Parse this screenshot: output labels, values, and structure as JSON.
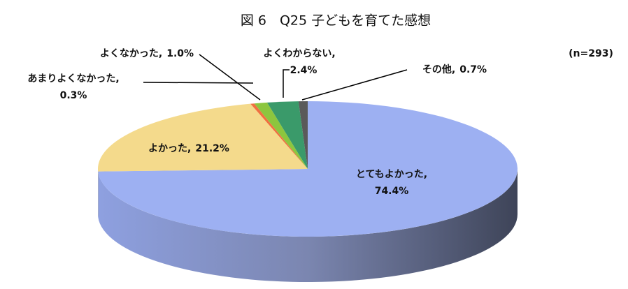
{
  "chart_data": {
    "type": "pie",
    "title": "図 6　Q25 子どもを育てた感想",
    "annotation": "(n=293)",
    "categories": [
      "とてもよかった,",
      "よかった,",
      "あまりよくなかった,",
      "よくなかった,",
      "よくわからない,",
      "その他,"
    ],
    "values": [
      74.4,
      21.2,
      0.3,
      1.0,
      2.4,
      0.7
    ],
    "value_labels": [
      "74.4%",
      "21.2%",
      "0.3%",
      "1.0%",
      "2.4%",
      "0.7%"
    ],
    "colors": [
      "#9db0f2",
      "#f4da8c",
      "#f07040",
      "#8cc63e",
      "#3a9a6a",
      "#5a5a5a"
    ]
  }
}
